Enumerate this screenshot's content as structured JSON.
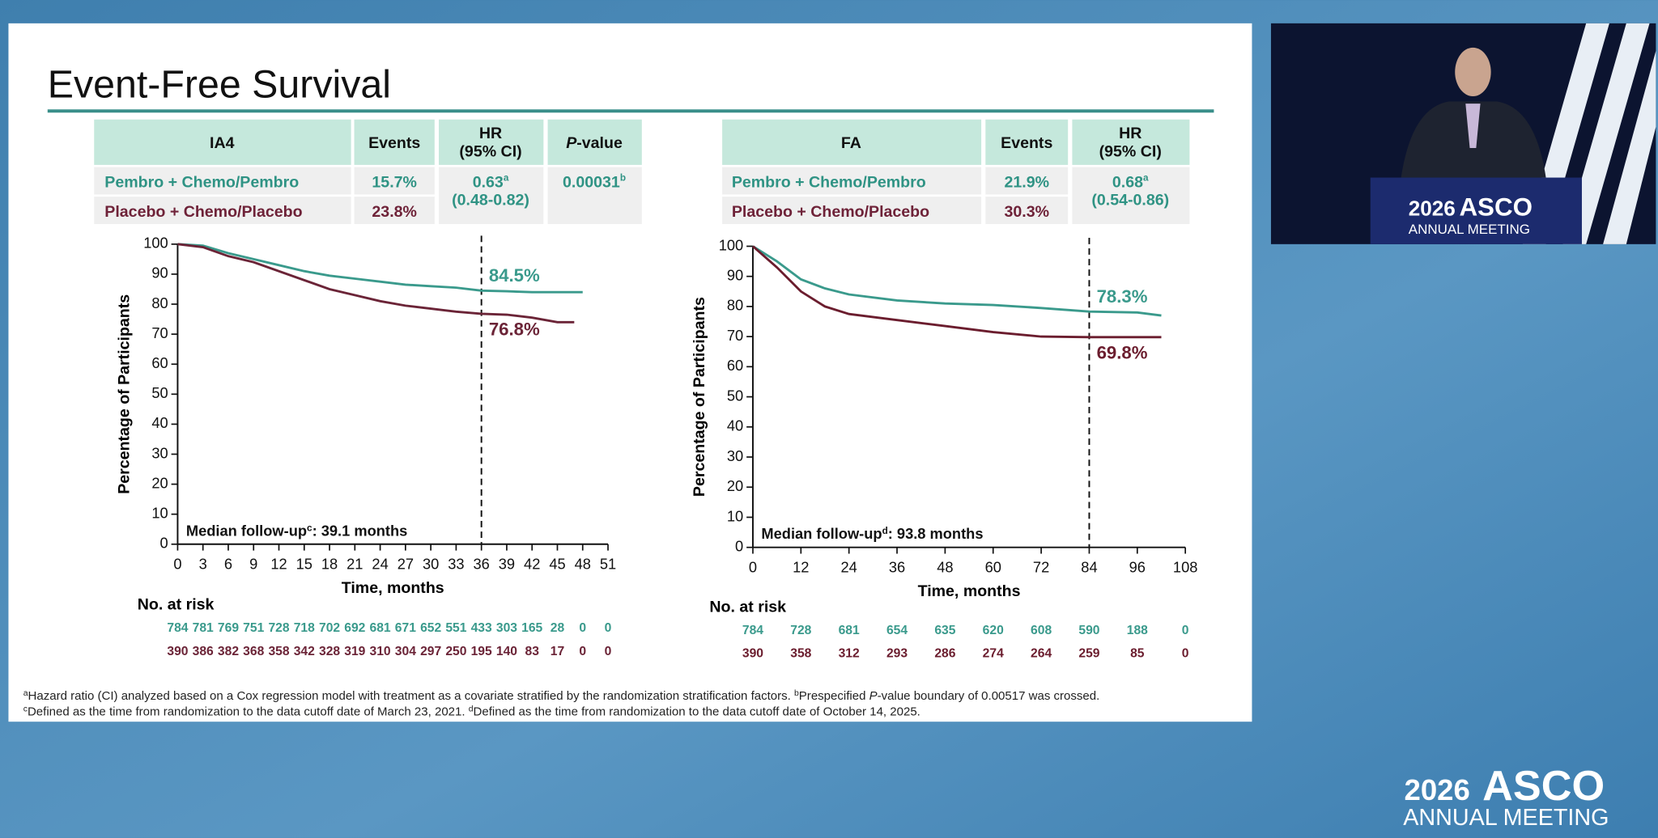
{
  "slide": {
    "title": "Event-Free Survival",
    "tables": [
      {
        "head": {
          "arm": "IA4",
          "events": "Events",
          "hr": "HR",
          "ci": "(95% CI)",
          "p_italic": "P",
          "p_rest": "-value"
        },
        "rows": [
          {
            "arm": "Pembro + Chemo/Pembro",
            "events": "15.7%"
          },
          {
            "arm": "Placebo + Chemo/Placebo",
            "events": "23.8%"
          }
        ],
        "hr": "0.63",
        "hr_sup": "a",
        "ci": "(0.48-0.82)",
        "p": "0.00031",
        "p_sup": "b"
      },
      {
        "head": {
          "arm": "FA",
          "events": "Events",
          "hr": "HR",
          "ci": "(95% CI)"
        },
        "rows": [
          {
            "arm": "Pembro + Chemo/Pembro",
            "events": "21.9%"
          },
          {
            "arm": "Placebo + Chemo/Placebo",
            "events": "30.3%"
          }
        ],
        "hr": "0.68",
        "hr_sup": "a",
        "ci": "(0.54-0.86)"
      }
    ],
    "footnotes": [
      [
        {
          "text": "a",
          "style": "sup"
        },
        {
          "text": "Hazard ratio (CI) analyzed based on a Cox regression model with treatment as a covariate stratified by the randomization stratification factors. "
        },
        {
          "text": "b",
          "style": "sup"
        },
        {
          "text": "Prespecified "
        },
        {
          "text": "P",
          "style": "italic"
        },
        {
          "text": "-value boundary of 0.00517 was crossed."
        }
      ],
      [
        {
          "text": "c",
          "style": "sup"
        },
        {
          "text": "Defined as the time from randomization to the data cutoff date of March 23, 2021. "
        },
        {
          "text": "d",
          "style": "sup"
        },
        {
          "text": "Defined as the time from randomization to the data cutoff date of October 14, 2025."
        }
      ]
    ]
  },
  "logo": {
    "year": "2026",
    "name": "ASCO",
    "sub": "ANNUAL MEETING"
  },
  "chart_data": [
    {
      "type": "line",
      "xlabel": "Time, months",
      "ylabel": "Percentage of Participants",
      "xlim": [
        0,
        51
      ],
      "xticks": [
        0,
        3,
        6,
        9,
        12,
        15,
        18,
        21,
        24,
        27,
        30,
        33,
        36,
        39,
        42,
        45,
        48,
        51
      ],
      "ylim": [
        0,
        100
      ],
      "yticks": [
        0,
        10,
        20,
        30,
        40,
        50,
        60,
        70,
        80,
        90,
        100
      ],
      "cutoff_x": 36,
      "note": "Median follow-up",
      "note_sup": "c",
      "note_rest": ": 39.1 months",
      "risk_title": "No. at risk",
      "series": [
        {
          "color": "#3a9a8c",
          "x": [
            0,
            3,
            6,
            9,
            12,
            15,
            18,
            21,
            24,
            27,
            30,
            33,
            36,
            39,
            42,
            45,
            48
          ],
          "values": [
            100,
            99.5,
            97,
            95,
            93,
            91,
            89.5,
            88.5,
            87.5,
            86.5,
            86,
            85.5,
            84.5,
            84.3,
            84,
            84,
            84
          ],
          "landmark": 84.5,
          "landmark_label": "84.5%",
          "at_risk": [
            784,
            781,
            769,
            751,
            728,
            718,
            702,
            692,
            681,
            671,
            652,
            551,
            433,
            303,
            165,
            28,
            0,
            0
          ]
        },
        {
          "color": "#6b2437",
          "x": [
            0,
            3,
            6,
            9,
            12,
            15,
            18,
            21,
            24,
            27,
            30,
            33,
            36,
            39,
            42,
            45,
            47
          ],
          "values": [
            100,
            99,
            96,
            94,
            91,
            88,
            85,
            83,
            81,
            79.5,
            78.5,
            77.5,
            76.8,
            76.5,
            75.5,
            74,
            74
          ],
          "landmark": 76.8,
          "landmark_label": "76.8%",
          "at_risk": [
            390,
            386,
            382,
            368,
            358,
            342,
            328,
            319,
            310,
            304,
            297,
            250,
            195,
            140,
            83,
            17,
            0,
            0
          ]
        }
      ]
    },
    {
      "type": "line",
      "xlabel": "Time, months",
      "ylabel": "Percentage of Participants",
      "xlim": [
        0,
        108
      ],
      "xticks": [
        0,
        12,
        24,
        36,
        48,
        60,
        72,
        84,
        96,
        108
      ],
      "ylim": [
        0,
        100
      ],
      "yticks": [
        0,
        10,
        20,
        30,
        40,
        50,
        60,
        70,
        80,
        90,
        100
      ],
      "cutoff_x": 84,
      "note": "Median follow-up",
      "note_sup": "d",
      "note_rest": ": 93.8 months",
      "risk_title": "No. at risk",
      "series": [
        {
          "color": "#3a9a8c",
          "x": [
            0,
            6,
            12,
            18,
            24,
            36,
            48,
            60,
            72,
            84,
            96,
            102
          ],
          "values": [
            100,
            95,
            89,
            86,
            84,
            82,
            81,
            80.5,
            79.5,
            78.3,
            78,
            77
          ],
          "landmark": 78.3,
          "landmark_label": "78.3%",
          "at_risk": [
            784,
            728,
            681,
            654,
            635,
            620,
            608,
            590,
            188,
            0
          ]
        },
        {
          "color": "#6b1d2e",
          "x": [
            0,
            6,
            12,
            18,
            24,
            36,
            48,
            60,
            72,
            84,
            96,
            102
          ],
          "values": [
            100,
            93,
            85,
            80,
            77.5,
            75.5,
            73.5,
            71.5,
            70,
            69.8,
            69.8,
            69.8
          ],
          "landmark": 69.8,
          "landmark_label": "69.8%",
          "at_risk": [
            390,
            358,
            312,
            293,
            286,
            274,
            264,
            259,
            85,
            0
          ]
        }
      ]
    }
  ]
}
